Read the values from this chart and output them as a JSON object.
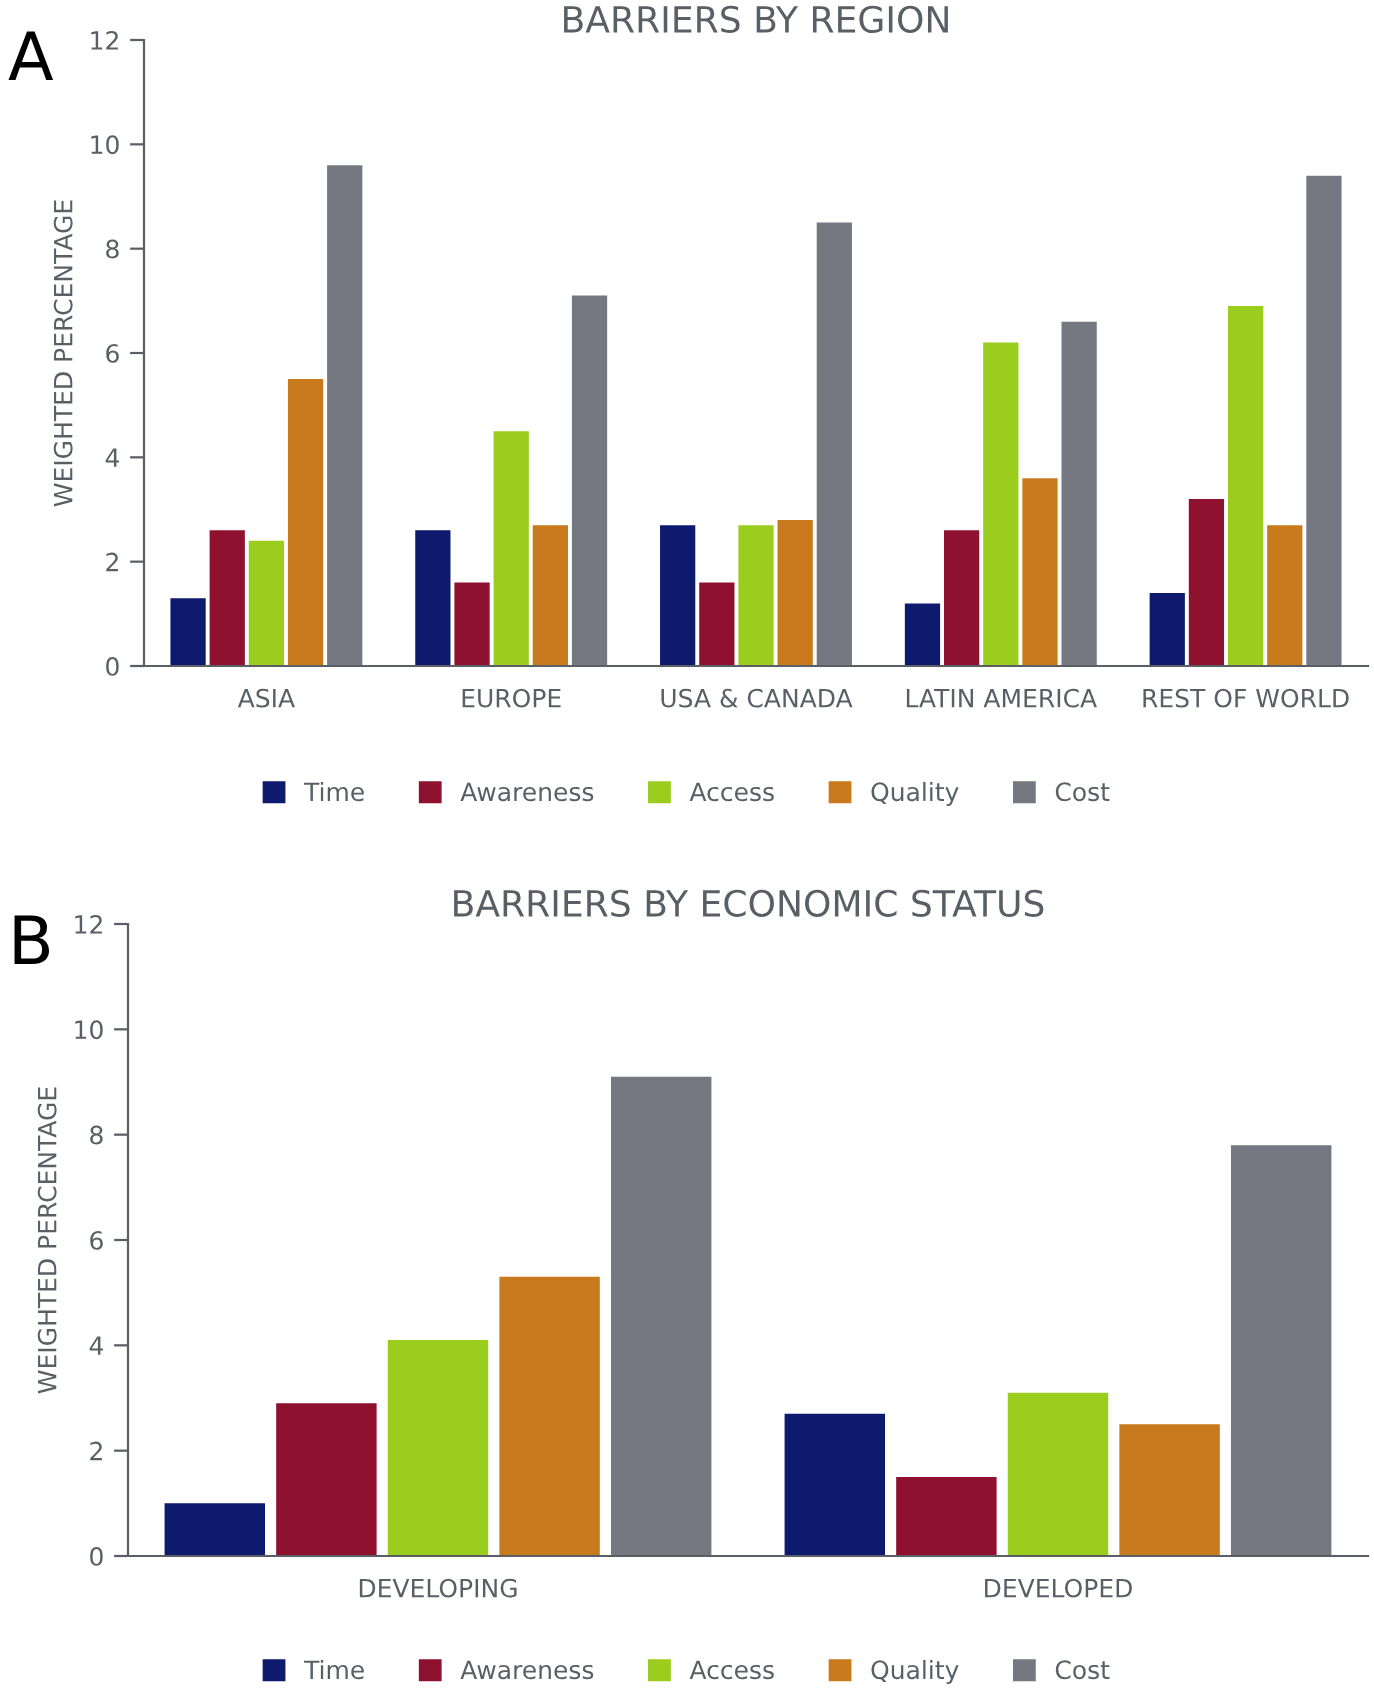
{
  "chart_data": [
    {
      "type": "bar",
      "title": "BARRIERS BY REGION",
      "ylabel": "WEIGHTED PERCENTAGE",
      "annotations": [
        "A"
      ],
      "categories": [
        "ASIA",
        "EUROPE",
        "USA & CANADA",
        "LATIN AMERICA",
        "REST OF WORLD"
      ],
      "series": [
        {
          "name": "Time",
          "color": "#0e1a6e",
          "values": [
            1.3,
            2.6,
            2.7,
            1.2,
            1.4
          ]
        },
        {
          "name": "Awareness",
          "color": "#8e1230",
          "values": [
            2.6,
            1.6,
            1.6,
            2.6,
            3.2
          ]
        },
        {
          "name": "Access",
          "color": "#9acd1e",
          "values": [
            2.4,
            4.5,
            2.7,
            6.2,
            6.9
          ]
        },
        {
          "name": "Quality",
          "color": "#c97a1c",
          "values": [
            5.5,
            2.7,
            2.8,
            3.6,
            2.7
          ]
        },
        {
          "name": "Cost",
          "color": "#757880",
          "values": [
            9.6,
            7.1,
            8.5,
            6.6,
            9.4
          ]
        }
      ],
      "ylim": [
        0,
        12
      ],
      "yticks": [
        0,
        2,
        4,
        6,
        8,
        10,
        12
      ],
      "legend": "bottom"
    },
    {
      "type": "bar",
      "title": "BARRIERS BY ECONOMIC STATUS",
      "ylabel": "WEIGHTED PERCENTAGE",
      "annotations": [
        "B"
      ],
      "categories": [
        "DEVELOPING",
        "DEVELOPED"
      ],
      "series": [
        {
          "name": "Time",
          "color": "#0e1a6e",
          "values": [
            1.0,
            2.7
          ]
        },
        {
          "name": "Awareness",
          "color": "#8e1230",
          "values": [
            2.9,
            1.5
          ]
        },
        {
          "name": "Access",
          "color": "#9acd1e",
          "values": [
            4.1,
            3.1
          ]
        },
        {
          "name": "Quality",
          "color": "#c97a1c",
          "values": [
            5.3,
            2.5
          ]
        },
        {
          "name": "Cost",
          "color": "#757880",
          "values": [
            9.1,
            7.8
          ]
        }
      ],
      "ylim": [
        0,
        12
      ],
      "yticks": [
        0,
        2,
        4,
        6,
        8,
        10,
        12
      ],
      "legend": "bottom"
    }
  ]
}
